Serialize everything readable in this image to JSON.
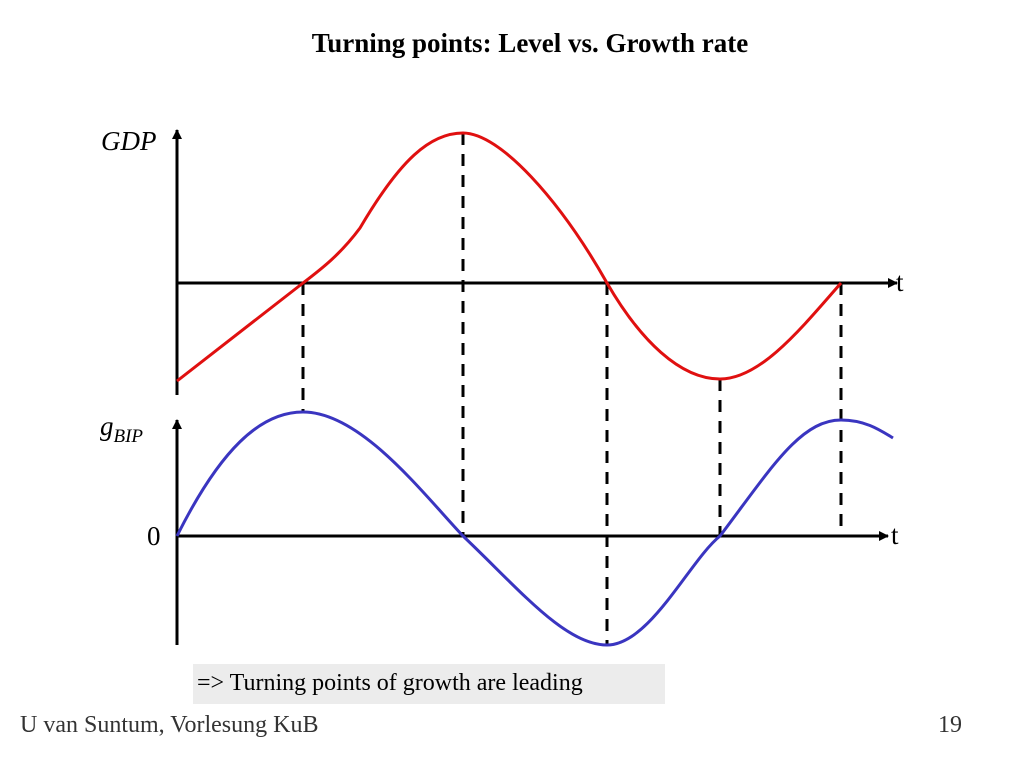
{
  "title": "Turning points: Level vs. Growth rate",
  "top_panel": {
    "y_label": "GDP",
    "x_label": "t",
    "curve_color": "#e01010"
  },
  "bottom_panel": {
    "y_label_main": "g",
    "y_label_sub": "BIP",
    "zero_label": "0",
    "x_label": "t",
    "curve_color": "#3a35c0"
  },
  "note": "=> Turning points of growth are leading",
  "footer": {
    "author": "U van Suntum, Vorlesung KuB",
    "page": "19"
  }
}
